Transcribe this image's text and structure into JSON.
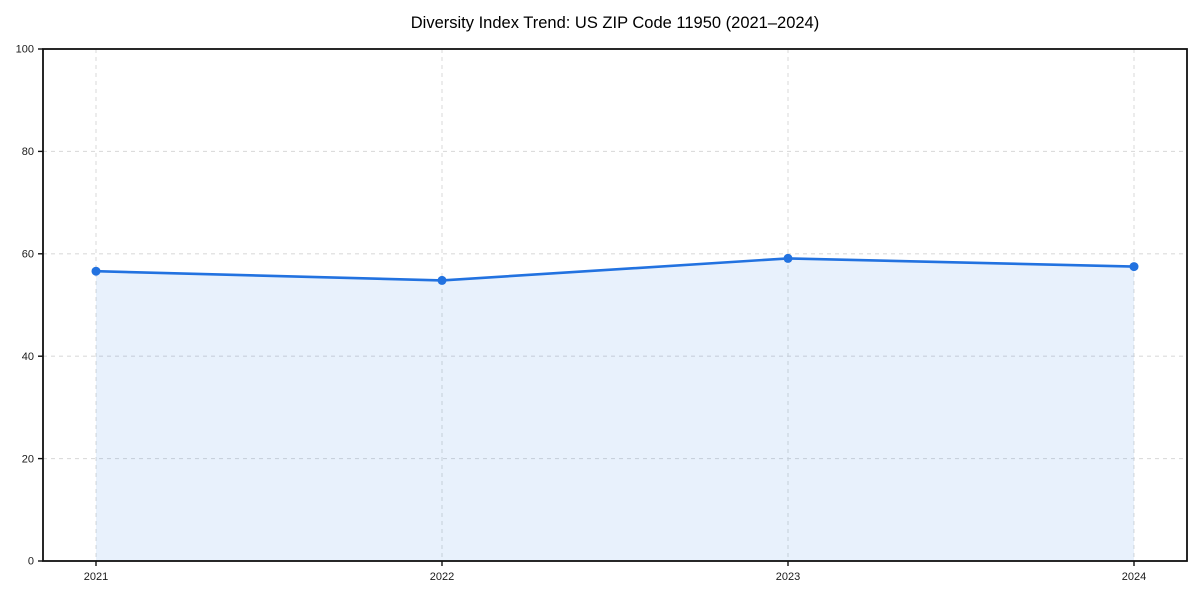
{
  "chart_data": {
    "type": "area",
    "title": "Diversity Index Trend: US ZIP Code 11950 (2021–2024)",
    "categories": [
      "2021",
      "2022",
      "2023",
      "2024"
    ],
    "series": [
      {
        "name": "Diversity Index",
        "values": [
          56.6,
          54.8,
          59.1,
          57.5
        ]
      }
    ],
    "xlabel": "",
    "ylabel": "",
    "ylim": [
      0,
      100
    ],
    "y_ticks": [
      0,
      20,
      40,
      60,
      80,
      100
    ],
    "grid": true,
    "grid_style": "dashed",
    "legend": false,
    "colors": {
      "line": "#2272e0",
      "marker": "#2272e0",
      "fill": "rgba(34, 114, 224, 0.10)",
      "grid": "#dcdcdc",
      "axis": "#111111",
      "text": "#1a1a1a",
      "background": "#ffffff"
    }
  }
}
